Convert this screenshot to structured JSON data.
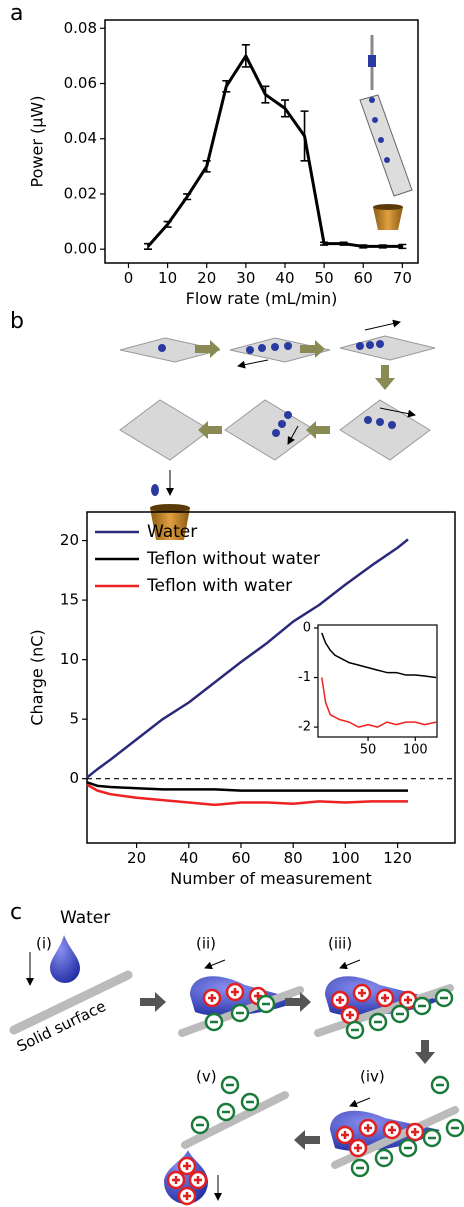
{
  "panel_labels": [
    "a",
    "b",
    "c"
  ],
  "chart_data": [
    {
      "type": "line",
      "x_label": "Flow rate (mL/min)",
      "y_label": "Power (μW)",
      "x": [
        5,
        10,
        15,
        20,
        25,
        30,
        35,
        40,
        45,
        50,
        55,
        60,
        65,
        70
      ],
      "series": [
        {
          "color": "#000000",
          "values": [
            0.001,
            0.009,
            0.019,
            0.03,
            0.059,
            0.07,
            0.056,
            0.051,
            0.041,
            0.002,
            0.002,
            0.001,
            0.001,
            0.001
          ],
          "errors": [
            0.001,
            0.001,
            0.001,
            0.002,
            0.002,
            0.004,
            0.003,
            0.003,
            0.009,
            0.0005,
            0.0005,
            0.0005,
            0.0005,
            0.0007
          ]
        }
      ],
      "xlim": [
        -6,
        74
      ],
      "ylim": [
        -0.005,
        0.083
      ],
      "xticks": [
        0,
        10,
        20,
        30,
        40,
        50,
        60,
        70
      ],
      "yticks": [
        {
          "value": 0,
          "label": "0.00"
        },
        {
          "value": 0.02,
          "label": "0.02"
        },
        {
          "value": 0.04,
          "label": "0.04"
        },
        {
          "value": 0.06,
          "label": "0.06"
        },
        {
          "value": 0.08,
          "label": "0.08"
        }
      ]
    },
    {
      "type": "line",
      "x_label": "Number of measurement",
      "y_label": "Charge (nC)",
      "x": [
        1,
        5,
        10,
        20,
        30,
        40,
        50,
        60,
        70,
        80,
        90,
        100,
        110,
        120,
        124
      ],
      "series": [
        {
          "name": "Water",
          "color": "#2b2a7a",
          "values": [
            0.1,
            0.8,
            1.6,
            3.3,
            5.0,
            6.4,
            8.1,
            9.8,
            11.4,
            13.2,
            14.6,
            16.3,
            17.9,
            19.4,
            20.1
          ]
        },
        {
          "name": "Teflon without water",
          "color": "#000000",
          "values": [
            -0.3,
            -0.6,
            -0.7,
            -0.8,
            -0.9,
            -0.9,
            -0.9,
            -1.0,
            -1.0,
            -1.0,
            -1.0,
            -1.0,
            -1.0,
            -1.0,
            -1.0
          ]
        },
        {
          "name": "Teflon with water",
          "color": "#ee2222",
          "values": [
            -0.5,
            -1.0,
            -1.3,
            -1.6,
            -1.8,
            -2.0,
            -2.2,
            -2.0,
            -2.0,
            -2.1,
            -1.9,
            -2.0,
            -1.9,
            -1.9,
            -1.9
          ]
        }
      ],
      "xlim": [
        1,
        142
      ],
      "ylim": [
        -5.4,
        22.4
      ],
      "xticks": [
        20,
        40,
        60,
        80,
        100,
        120
      ],
      "yticks": [
        0,
        5,
        10,
        15,
        20
      ],
      "reference_line": 0,
      "legend": "upper left"
    },
    {
      "type": "line",
      "x": [
        1,
        5,
        10,
        15,
        20,
        30,
        40,
        50,
        60,
        70,
        80,
        90,
        100,
        110,
        122
      ],
      "series": [
        {
          "color": "#000000",
          "values": [
            -0.1,
            -0.3,
            -0.45,
            -0.55,
            -0.6,
            -0.7,
            -0.75,
            -0.8,
            -0.85,
            -0.9,
            -0.9,
            -0.95,
            -0.95,
            -0.97,
            -1.0
          ]
        },
        {
          "color": "#ee2222",
          "values": [
            -1.0,
            -1.5,
            -1.75,
            -1.8,
            -1.85,
            -1.9,
            -2.0,
            -1.95,
            -2.0,
            -1.9,
            -1.95,
            -1.9,
            -1.9,
            -1.95,
            -1.9
          ]
        }
      ],
      "xlim": [
        -3,
        123
      ],
      "ylim": [
        -2.2,
        0.06
      ],
      "xticks": [
        50,
        100
      ],
      "yticks": [
        0,
        -1,
        -2
      ]
    }
  ],
  "diagram_c": {
    "water": "Water",
    "steps": [
      "(i)",
      "(ii)",
      "(iii)",
      "(iv)",
      "(v)"
    ],
    "surface": "Solid surface"
  }
}
